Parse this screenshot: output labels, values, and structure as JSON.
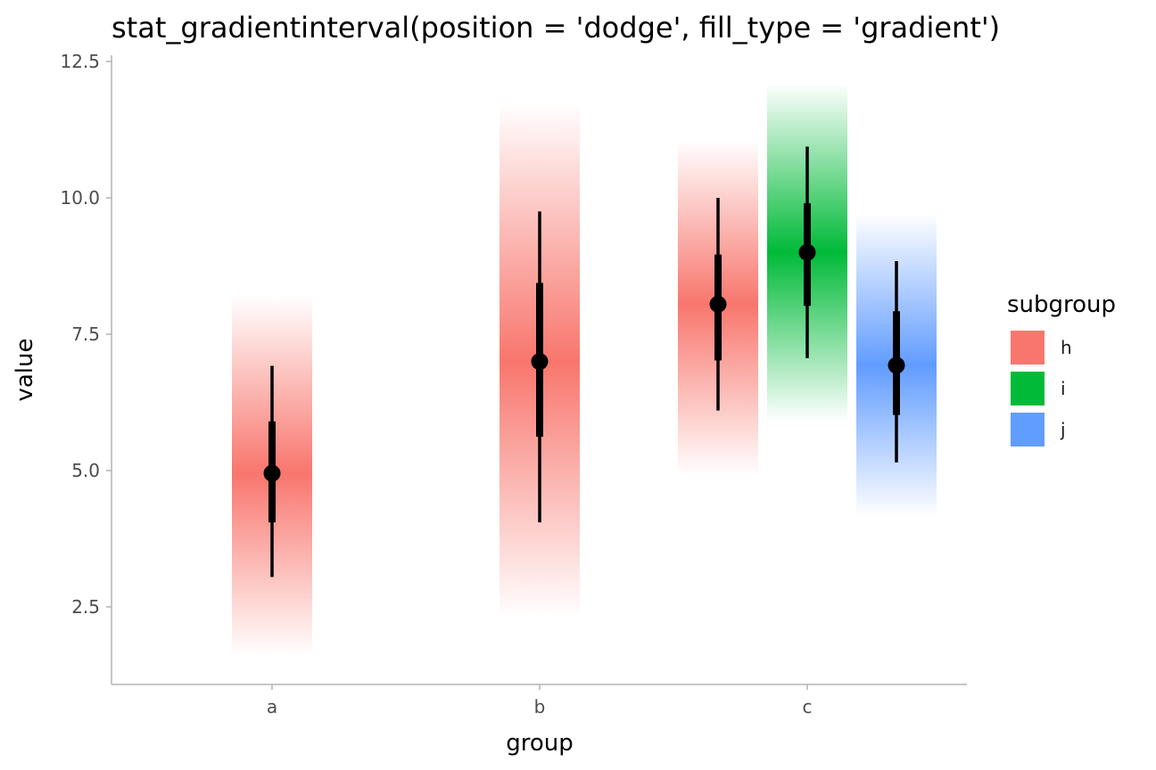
{
  "chart_data": {
    "type": "interval",
    "title": "stat_gradientinterval(position = 'dodge', fill_type = 'gradient')",
    "xlabel": "group",
    "ylabel": "value",
    "categories": [
      "a",
      "b",
      "c"
    ],
    "yticks": [
      "2.5",
      "5.0",
      "7.5",
      "10.0",
      "12.5"
    ],
    "ylim": [
      1.1,
      12.6
    ],
    "grid": false,
    "legend": {
      "title": "subgroup",
      "position": "right",
      "entries": [
        {
          "label": "h",
          "color": "#F8766D"
        },
        {
          "label": "i",
          "color": "#00BA38"
        },
        {
          "label": "j",
          "color": "#619CFF"
        }
      ]
    },
    "intervals": [
      {
        "group": "a",
        "subgroup": "h",
        "color": "#F8766D",
        "point": 4.95,
        "inner": [
          4.05,
          5.9
        ],
        "outer": [
          3.05,
          6.92
        ],
        "gradient_range": [
          1.6,
          8.2
        ]
      },
      {
        "group": "b",
        "subgroup": "h",
        "color": "#F8766D",
        "point": 7.0,
        "inner": [
          5.62,
          8.44
        ],
        "outer": [
          4.05,
          9.75
        ],
        "gradient_range": [
          2.3,
          11.75
        ]
      },
      {
        "group": "c",
        "subgroup": "h",
        "color": "#F8766D",
        "point": 8.05,
        "inner": [
          7.02,
          8.96
        ],
        "outer": [
          6.1,
          10.0
        ],
        "gradient_range": [
          4.9,
          11.05
        ]
      },
      {
        "group": "c",
        "subgroup": "i",
        "color": "#00BA38",
        "point": 9.0,
        "inner": [
          8.02,
          9.9
        ],
        "outer": [
          7.06,
          10.94
        ],
        "gradient_range": [
          5.9,
          12.1
        ]
      },
      {
        "group": "c",
        "subgroup": "j",
        "color": "#619CFF",
        "point": 6.93,
        "inner": [
          6.02,
          7.92
        ],
        "outer": [
          5.15,
          8.84
        ],
        "gradient_range": [
          4.15,
          9.72
        ]
      }
    ]
  }
}
